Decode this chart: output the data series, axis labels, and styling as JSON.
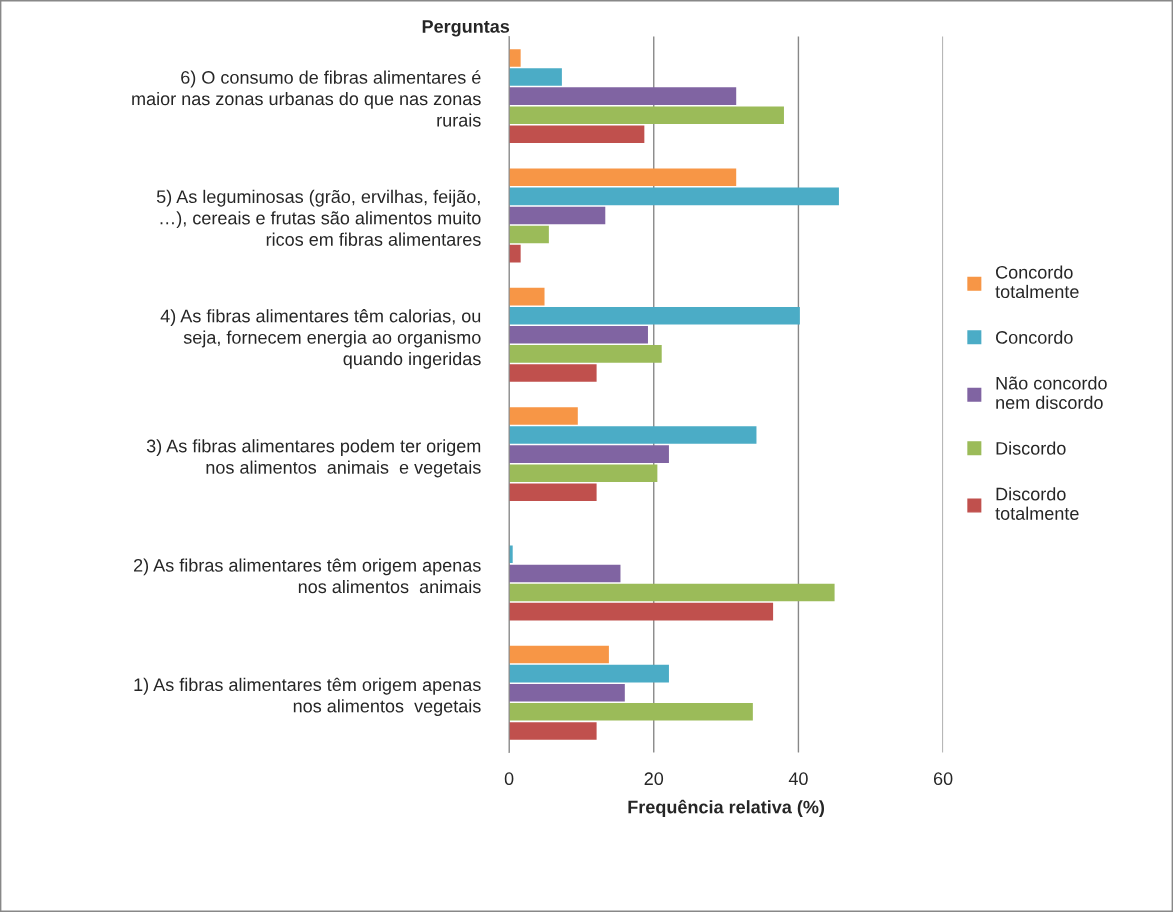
{
  "chart_data": {
    "type": "bar",
    "orientation": "horizontal",
    "xlabel": "Frequência relativa (%)",
    "ylabel": "Perguntas",
    "categories": [
      "6) O consumo de fibras alimentares é\nmaior nas zonas urbanas do que nas zonas\nrurais",
      "5) As leguminosas (grão, ervilhas, feijão,\n…), cereais e frutas são alimentos muito\nricos em fibras alimentares",
      "4) As fibras alimentares têm calorias, ou\nseja, fornecem energia ao organismo\nquando ingeridas",
      "3) As fibras alimentares podem ter origem\nnos alimentos  animais  e vegetais",
      "2) As fibras alimentares têm origem apenas\nnos alimentos  animais",
      "1) As fibras alimentares têm origem apenas\nnos alimentos  vegetais"
    ],
    "series": [
      {
        "name": "Discordo\ntotalmente",
        "color": "#c0504d",
        "values": [
          18.7,
          1.6,
          12.1,
          12.1,
          36.5,
          12.1
        ]
      },
      {
        "name": "Discordo",
        "color": "#9bbb59",
        "values": [
          38.0,
          5.5,
          21.1,
          20.5,
          45.0,
          33.7
        ]
      },
      {
        "name": "Não concordo\nnem discordo",
        "color": "#8064a2",
        "values": [
          31.4,
          13.3,
          19.2,
          22.1,
          15.4,
          16.0
        ]
      },
      {
        "name": "Concordo",
        "color": "#4bacc6",
        "values": [
          7.3,
          45.6,
          40.2,
          34.2,
          0.5,
          22.1
        ]
      },
      {
        "name": "Concordo\ntotalmente",
        "color": "#f79646",
        "values": [
          1.6,
          31.4,
          4.9,
          9.5,
          0,
          13.8
        ]
      }
    ],
    "xlim": [
      0,
      60
    ],
    "xticks": [
      0,
      20,
      40,
      60
    ],
    "grid": "x",
    "legend": "right"
  }
}
